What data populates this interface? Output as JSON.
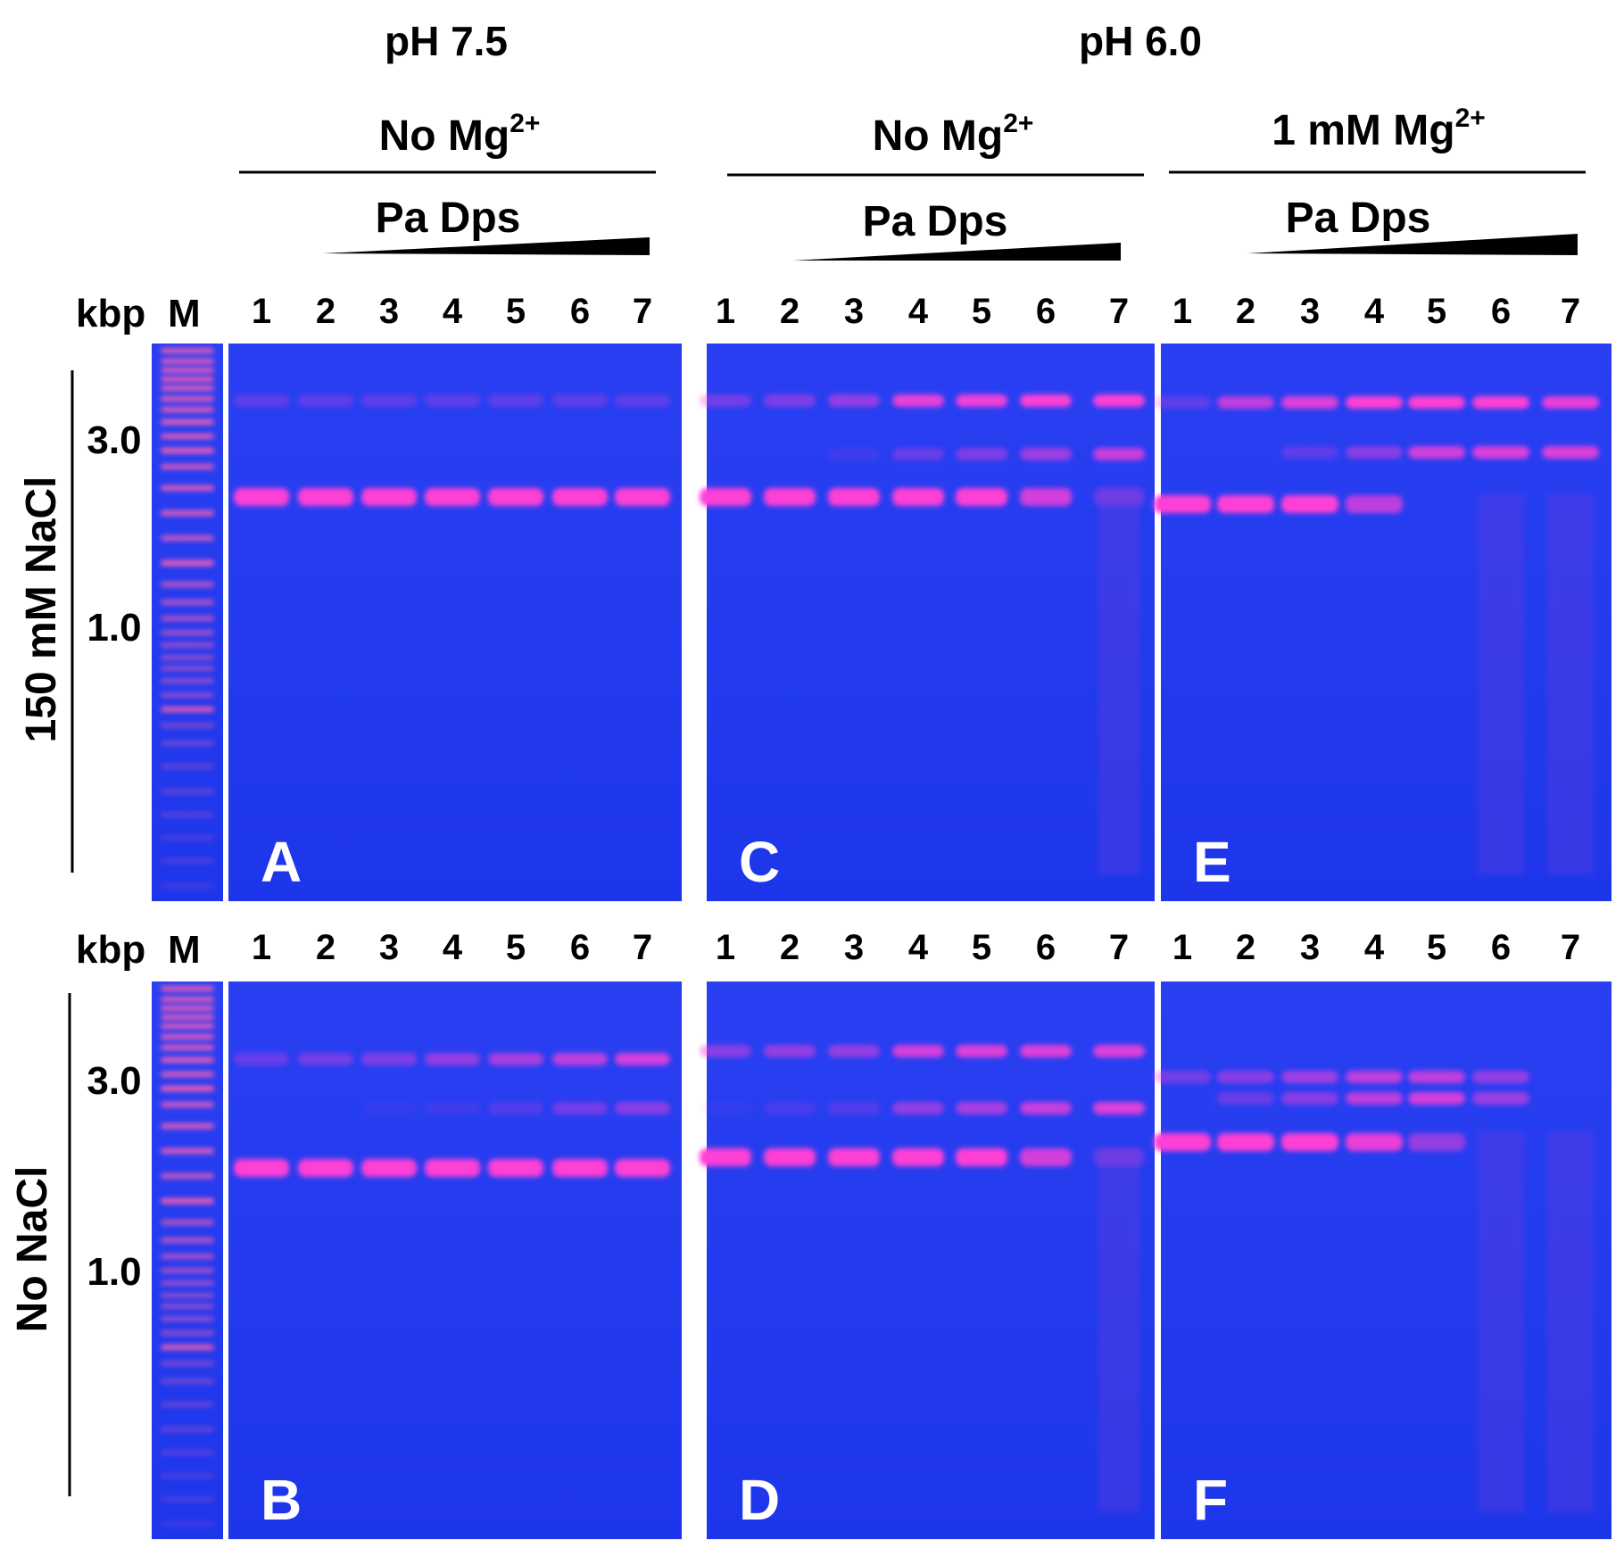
{
  "figure": {
    "headers": {
      "ph_left": "pH 7.5",
      "ph_right": "pH 6.0",
      "mg_a": "No Mg",
      "mg_a_sup": "2+",
      "mg_b": "No Mg",
      "mg_b_sup": "2+",
      "mg_c": "1 mM Mg",
      "mg_c_sup": "2+",
      "protein": "Pa Dps"
    },
    "row_labels": [
      "150 mM NaCl",
      "No NaCl"
    ],
    "marker": {
      "unit": "kbp",
      "lane": "M",
      "sizes": [
        "3.0",
        "1.0"
      ]
    },
    "lane_numbers": [
      "1",
      "2",
      "3",
      "4",
      "5",
      "6",
      "7"
    ],
    "panels": [
      "A",
      "C",
      "E",
      "B",
      "D",
      "F"
    ],
    "colors": {
      "gel": "#1f3cf0",
      "band": "#ff3fd6",
      "ladder": "#ff5fb0",
      "text": "#000000"
    }
  }
}
